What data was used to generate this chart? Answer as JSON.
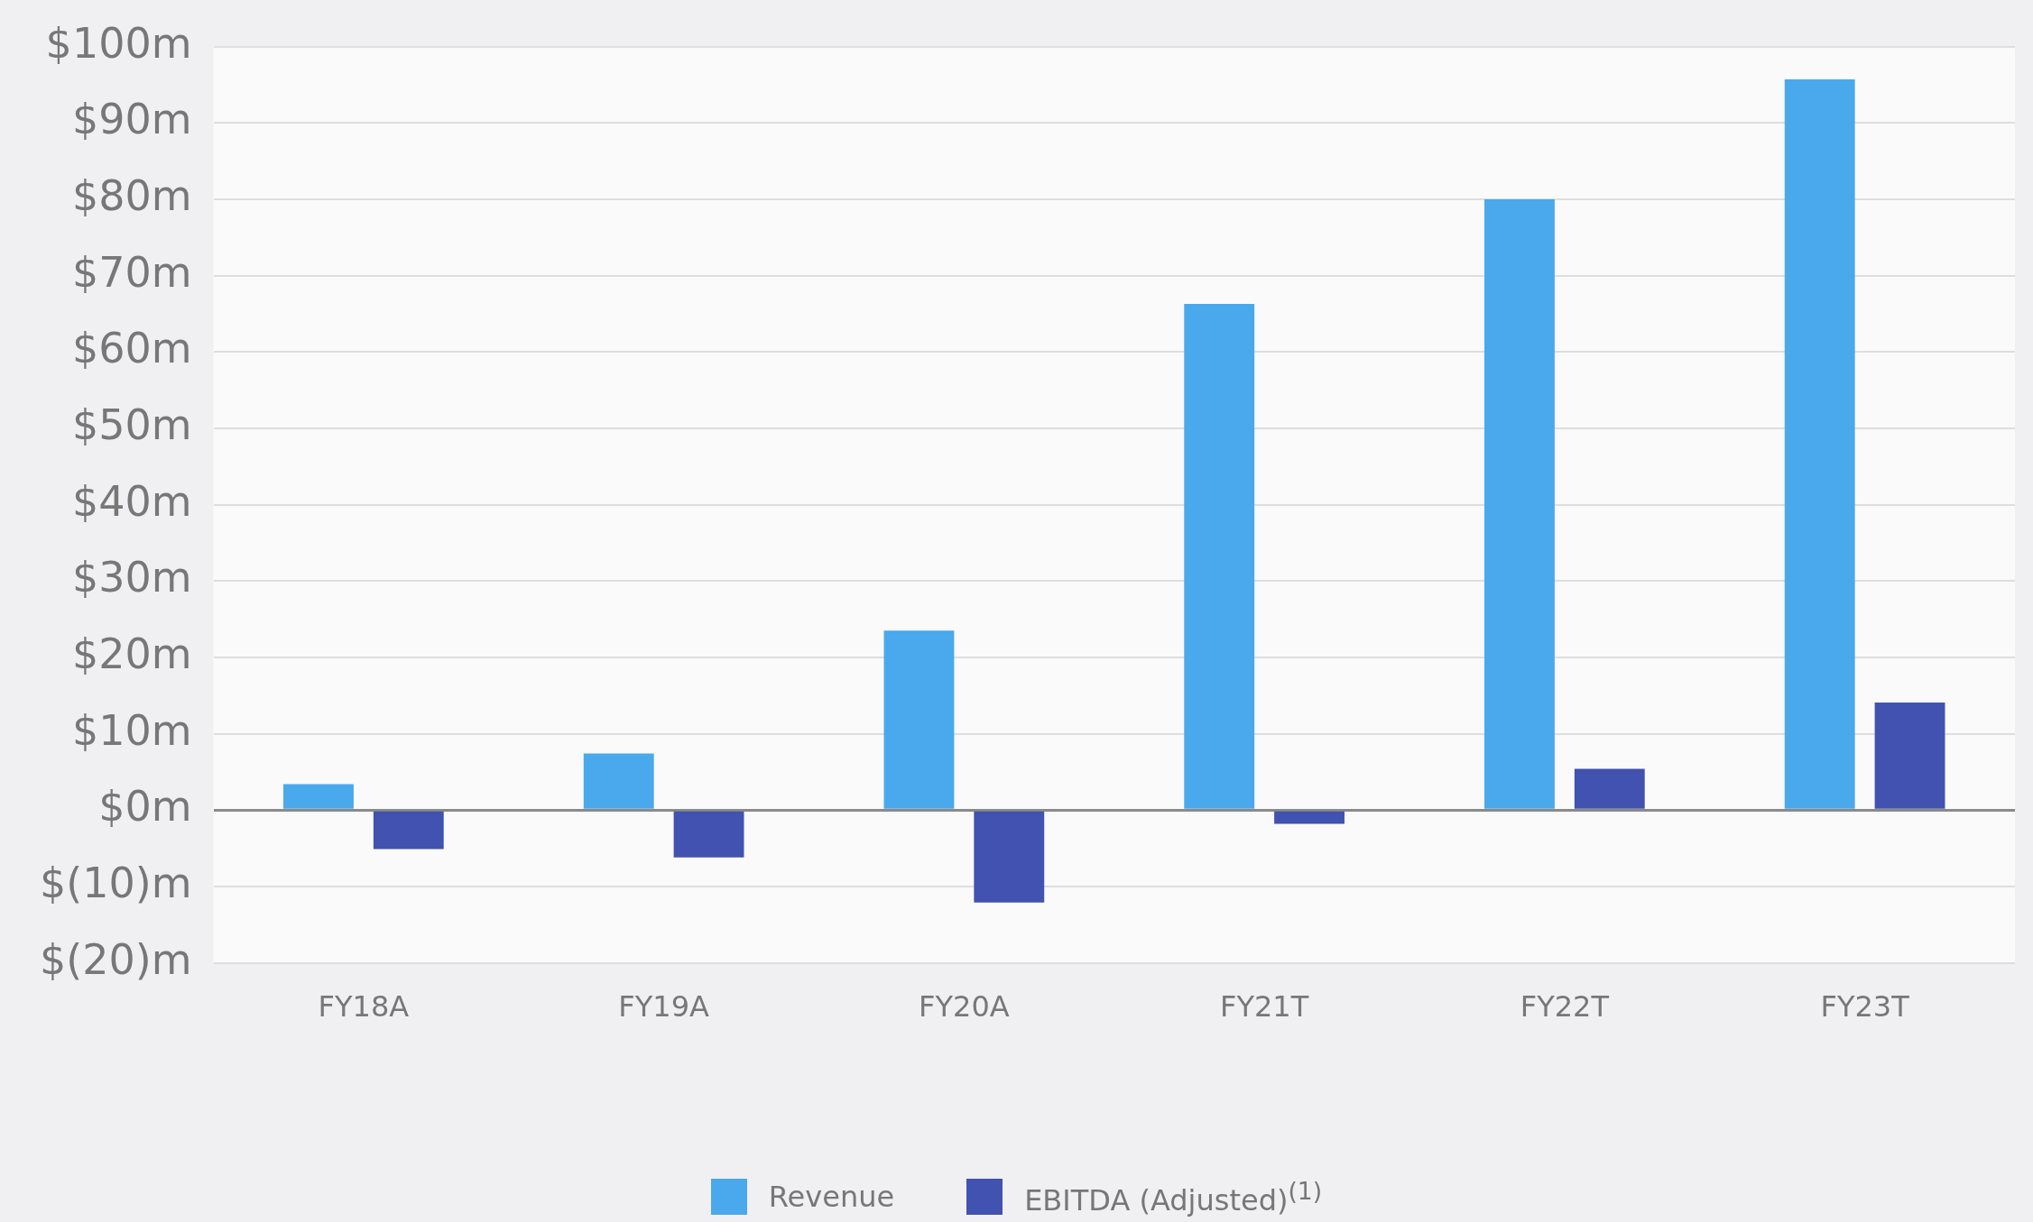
{
  "chart_data": {
    "type": "bar",
    "categories": [
      "FY18A",
      "FY19A",
      "FY20A",
      "FY21T",
      "FY22T",
      "FY23T"
    ],
    "series": [
      {
        "name": "Revenue",
        "color": "#4aa8ec",
        "values": [
          3.4,
          7.4,
          23.5,
          66.3,
          80.0,
          95.7
        ]
      },
      {
        "name": "EBITDA (Adjusted)$^{(1)}$",
        "color": "#4152b0",
        "values": [
          -5.1,
          -6.2,
          -12.1,
          -1.8,
          5.4,
          14.1
        ]
      }
    ],
    "ylim": [
      -20,
      100
    ],
    "yticks": [
      {
        "value": -20,
        "label": "$(20)m"
      },
      {
        "value": -10,
        "label": "$(10)m"
      },
      {
        "value": 0,
        "label": "$0m"
      },
      {
        "value": 10,
        "label": "$10m"
      },
      {
        "value": 20,
        "label": "$20m"
      },
      {
        "value": 30,
        "label": "$30m"
      },
      {
        "value": 40,
        "label": "$40m"
      },
      {
        "value": 50,
        "label": "$50m"
      },
      {
        "value": 60,
        "label": "$60m"
      },
      {
        "value": 70,
        "label": "$70m"
      },
      {
        "value": 80,
        "label": "$80m"
      },
      {
        "value": 90,
        "label": "$90m"
      },
      {
        "value": 100,
        "label": "$100m"
      }
    ],
    "grid": "y",
    "legend": "bottom"
  }
}
